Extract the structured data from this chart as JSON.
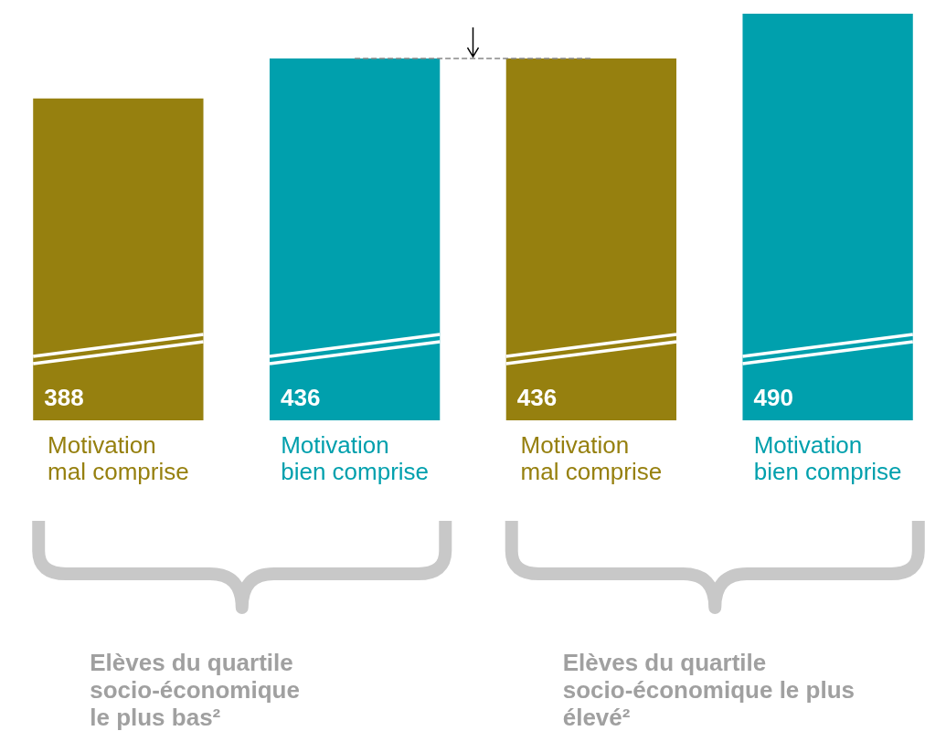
{
  "chart_data": {
    "type": "bar",
    "categories": [
      "Motivation\nmal comprise",
      "Motivation\nbien comprise",
      "Motivation\nmal comprise",
      "Motivation\nbien comprise"
    ],
    "values": [
      388,
      436,
      436,
      490
    ],
    "colors": [
      "#96800f",
      "#00a0ad",
      "#96800f",
      "#00a0ad"
    ],
    "tick_labels": "x",
    "data_labels": true,
    "ref_lines": [
      {
        "axis": "y",
        "value": 436,
        "color": "#888888",
        "line_style": "dashed"
      }
    ],
    "annotations": [
      "Elèves du quartile\nsocio-économique\nle plus bas²",
      "Elèves du quartile\nsocio-économique le plus\nélevé²"
    ]
  }
}
